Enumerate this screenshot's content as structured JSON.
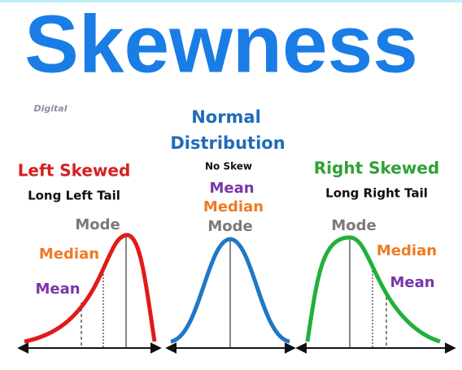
{
  "title": "Skewness",
  "logo": "Digital",
  "panels": [
    {
      "heading": [
        "Left Skewed"
      ],
      "subheading": "Long Left Tail",
      "labels": [
        "Mode",
        "Median",
        "Mean"
      ]
    },
    {
      "heading": [
        "Normal",
        "Distribution"
      ],
      "subheading": "No Skew",
      "labels": [
        "Mean",
        "Median",
        "Mode"
      ]
    },
    {
      "heading": [
        "Right Skewed"
      ],
      "subheading": "Long Right Tail",
      "labels": [
        "Mode",
        "Median",
        "Mean"
      ]
    }
  ]
}
